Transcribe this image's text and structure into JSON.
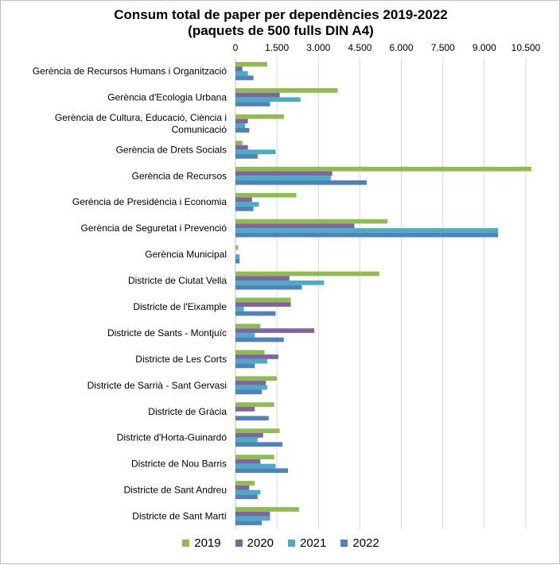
{
  "chart_data": {
    "type": "bar",
    "orientation": "horizontal",
    "title_line1": "Consum total de paper per dependències 2019-2022",
    "title_line2": "(paquets de 500 fulls DIN A4)",
    "xlim": [
      0,
      10500
    ],
    "x_ticks": [
      0,
      1500,
      3000,
      4500,
      6000,
      7500,
      9000,
      10500
    ],
    "x_tick_labels": [
      "0",
      "1.500",
      "3.000",
      "4.500",
      "6.000",
      "7.500",
      "9.000",
      "10.500"
    ],
    "axis_position": "top",
    "grid": true,
    "legend_position": "bottom",
    "categories": [
      [
        "Gerència de Recursos Humans i Organització"
      ],
      [
        "Gerència d'Ecologia Urbana"
      ],
      [
        "Gerència de Cultura, Educació, Ciència i",
        "Comunicació"
      ],
      [
        "Gerència de Drets Socials"
      ],
      [
        "Gerència de Recursos"
      ],
      [
        "Gerència de Presidència i Economia"
      ],
      [
        "Gerència de Seguretat i Prevenció"
      ],
      [
        "Gerència Municipal"
      ],
      [
        "Districte de Ciutat Vella"
      ],
      [
        "Districte de l'Eixample"
      ],
      [
        "Districte de Sants - Montjuïc"
      ],
      [
        "Districte de Les Corts"
      ],
      [
        "Districte de Sarrià - Sant Gervasi"
      ],
      [
        "Districte de Gràcia"
      ],
      [
        "Districte d'Horta-Guinardó"
      ],
      [
        "Districte de Nou Barris"
      ],
      [
        "Districte de Sant Andreu"
      ],
      [
        "Districte de Sant Martí"
      ]
    ],
    "series": [
      {
        "name": "2019",
        "color": "#8fbc4e",
        "values": [
          1150,
          3700,
          1750,
          250,
          10700,
          2200,
          5500,
          100,
          5200,
          2000,
          900,
          1050,
          1500,
          1400,
          1600,
          1400,
          700,
          2300
        ]
      },
      {
        "name": "2020",
        "color": "#8064a2",
        "values": [
          250,
          1600,
          450,
          450,
          3500,
          600,
          4300,
          0,
          1950,
          2000,
          2850,
          1550,
          1100,
          700,
          1000,
          900,
          500,
          1250
        ]
      },
      {
        "name": "2021",
        "color": "#4bacc6",
        "values": [
          450,
          2350,
          350,
          1450,
          3450,
          850,
          9500,
          150,
          3200,
          300,
          700,
          1150,
          1150,
          0,
          800,
          1450,
          900,
          1250
        ]
      },
      {
        "name": "2022",
        "color": "#4f81bd",
        "values": [
          650,
          1250,
          500,
          800,
          4750,
          650,
          9500,
          150,
          2400,
          1450,
          1750,
          700,
          950,
          1200,
          1700,
          1900,
          800,
          950
        ]
      }
    ]
  }
}
